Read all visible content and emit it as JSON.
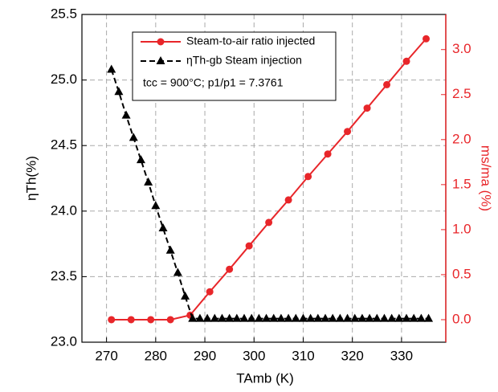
{
  "chart_data": {
    "type": "line",
    "x_label": "TAmb (K)",
    "y_label": "ηTh(%)",
    "y2_label": "ms/ma (%)",
    "annotation": "tcc = 900°C;  p1/p1 = 7.3761",
    "xlim": [
      265,
      339
    ],
    "xticks": [
      270,
      280,
      290,
      300,
      310,
      320,
      330
    ],
    "ylim": [
      23.0,
      25.5
    ],
    "yticks": [
      {
        "value": 23.0,
        "label": "23.0"
      },
      {
        "value": 23.5,
        "label": "23.5"
      },
      {
        "value": 24.0,
        "label": "24.0"
      },
      {
        "value": 24.5,
        "label": "24.5"
      },
      {
        "value": 25.0,
        "label": "25.0"
      },
      {
        "value": 25.5,
        "label": "25.5"
      }
    ],
    "y2lim": [
      -0.25,
      3.39
    ],
    "y2ticks": [
      {
        "value": 0,
        "label": "0.0"
      },
      {
        "value": 0.5,
        "label": "0.5"
      },
      {
        "value": 1.0,
        "label": "1.0"
      },
      {
        "value": 1.5,
        "label": "1.5"
      },
      {
        "value": 2.0,
        "label": "2.0"
      },
      {
        "value": 2.5,
        "label": "2.5"
      },
      {
        "value": 3.0,
        "label": "3.0"
      }
    ],
    "grid": true,
    "series": [
      {
        "name": "Steam-to-air ratio injected",
        "color": "#e8262a",
        "axis": "y2",
        "marker": "circle",
        "dash": false,
        "x": [
          271,
          275,
          279,
          283,
          287,
          291,
          295,
          299,
          303,
          307,
          311,
          315,
          319,
          323,
          327,
          331,
          335
        ],
        "values": [
          0,
          0,
          0,
          0,
          0.05,
          0.31,
          0.56,
          0.82,
          1.08,
          1.33,
          1.59,
          1.84,
          2.09,
          2.35,
          2.61,
          2.87,
          3.12
        ]
      },
      {
        "name": "ηTh-gb Steam injection",
        "color": "#000000",
        "axis": "y",
        "marker": "triangle",
        "dash": true,
        "x": [
          271,
          272.5,
          274,
          275.5,
          277,
          278.5,
          280,
          281.5,
          283,
          284.5,
          286,
          287.5,
          289,
          290.5,
          292,
          293.5,
          295,
          296.5,
          298,
          299.5,
          301,
          302.5,
          304,
          305.5,
          307,
          308.5,
          310,
          311.5,
          313,
          314.5,
          316,
          317.5,
          319,
          320.5,
          322,
          323.5,
          325,
          326.5,
          328,
          329.5,
          331,
          332.5,
          334,
          335.5
        ],
        "values": [
          25.08,
          24.91,
          24.73,
          24.56,
          24.39,
          24.22,
          24.04,
          23.87,
          23.7,
          23.53,
          23.35,
          23.18,
          23.18,
          23.18,
          23.18,
          23.18,
          23.18,
          23.18,
          23.18,
          23.18,
          23.18,
          23.18,
          23.18,
          23.18,
          23.18,
          23.18,
          23.18,
          23.18,
          23.18,
          23.18,
          23.18,
          23.18,
          23.18,
          23.18,
          23.18,
          23.18,
          23.18,
          23.18,
          23.18,
          23.18,
          23.18,
          23.18,
          23.18,
          23.18
        ]
      }
    ]
  }
}
